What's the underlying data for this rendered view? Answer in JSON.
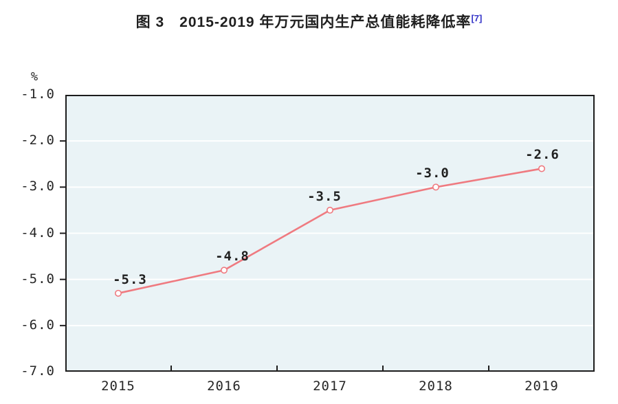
{
  "title": {
    "text": "图 3　2015-2019 年万元国内生产总值能耗降低率",
    "superscript": "[7]"
  },
  "yaxis": {
    "unit": "%",
    "ticks": [
      "-1.0",
      "-2.0",
      "-3.0",
      "-4.0",
      "-5.0",
      "-6.0",
      "-7.0"
    ]
  },
  "xaxis": {
    "ticks": [
      "2015",
      "2016",
      "2017",
      "2018",
      "2019"
    ]
  },
  "colors": {
    "line": "#ef7a80",
    "marker_fill": "#ffffff",
    "plot_background": "#eaf3f6",
    "gridline": "#ffffff",
    "axis_frame": "#1c1c1c",
    "text": "#262626",
    "footnote_ref": "#3434c8"
  },
  "chart_data": {
    "type": "line",
    "title": "图 3　2015-2019 年万元国内生产总值能耗降低率",
    "title_superscript": "[7]",
    "xlabel": "",
    "ylabel": "%",
    "categories": [
      "2015",
      "2016",
      "2017",
      "2018",
      "2019"
    ],
    "series": [
      {
        "name": "万元国内生产总值能耗降低率",
        "values": [
          -5.3,
          -4.8,
          -3.5,
          -3.0,
          -2.6
        ]
      }
    ],
    "point_labels": [
      "-5.3",
      "-4.8",
      "-3.5",
      "-3.0",
      "-2.6"
    ],
    "ylim": [
      -7.0,
      -1.0
    ],
    "ytick_values": [
      -1.0,
      -2.0,
      -3.0,
      -4.0,
      -5.0,
      -6.0,
      -7.0
    ],
    "gridlines": "horizontal white lines at -2.0 through -6.0",
    "legend_position": "none",
    "marker": "open-circle",
    "line_color": "#ef7a80",
    "plot_background": "#eaf3f6"
  }
}
